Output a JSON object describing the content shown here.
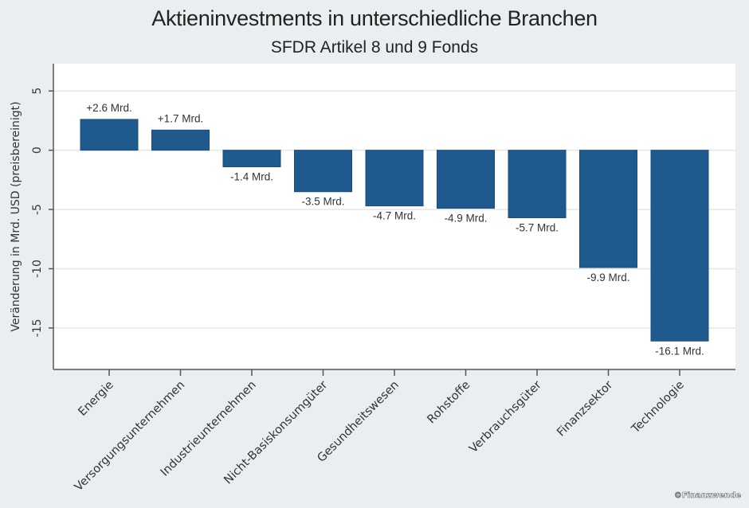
{
  "chart_data": {
    "type": "bar",
    "title": "Aktieninvestments in unterschiedliche Branchen",
    "subtitle": "SFDR Artikel 8 und 9 Fonds",
    "xlabel": "",
    "ylabel": "Veränderung in Mrd. USD (preisbereinigt)",
    "ylim": [
      -18.5,
      7.3
    ],
    "yticks": [
      5,
      0,
      -5,
      -10,
      -15
    ],
    "ytick_labels": [
      "5",
      "0",
      "-5",
      "-10",
      "-15"
    ],
    "grid": true,
    "categories": [
      "Energie",
      "Versorgungsunternehmen",
      "Industrieunternehmen",
      "Nicht-Basiskonsumgüter",
      "Gesundheitswesen",
      "Rohstoffe",
      "Verbrauchsgüter",
      "Finanzsektor",
      "Technologie"
    ],
    "values": [
      2.6,
      1.7,
      -1.4,
      -3.5,
      -4.7,
      -4.9,
      -5.7,
      -9.9,
      -16.1
    ],
    "data_labels": [
      "+2.6 Mrd.",
      "+1.7 Mrd.",
      "-1.4 Mrd.",
      "-3.5 Mrd.",
      "-4.7 Mrd.",
      "-4.9 Mrd.",
      "-5.7 Mrd.",
      "-9.9 Mrd.",
      "-16.1 Mrd."
    ],
    "bar_color": "#1f5a8f",
    "watermark": "©Finanzwende"
  }
}
